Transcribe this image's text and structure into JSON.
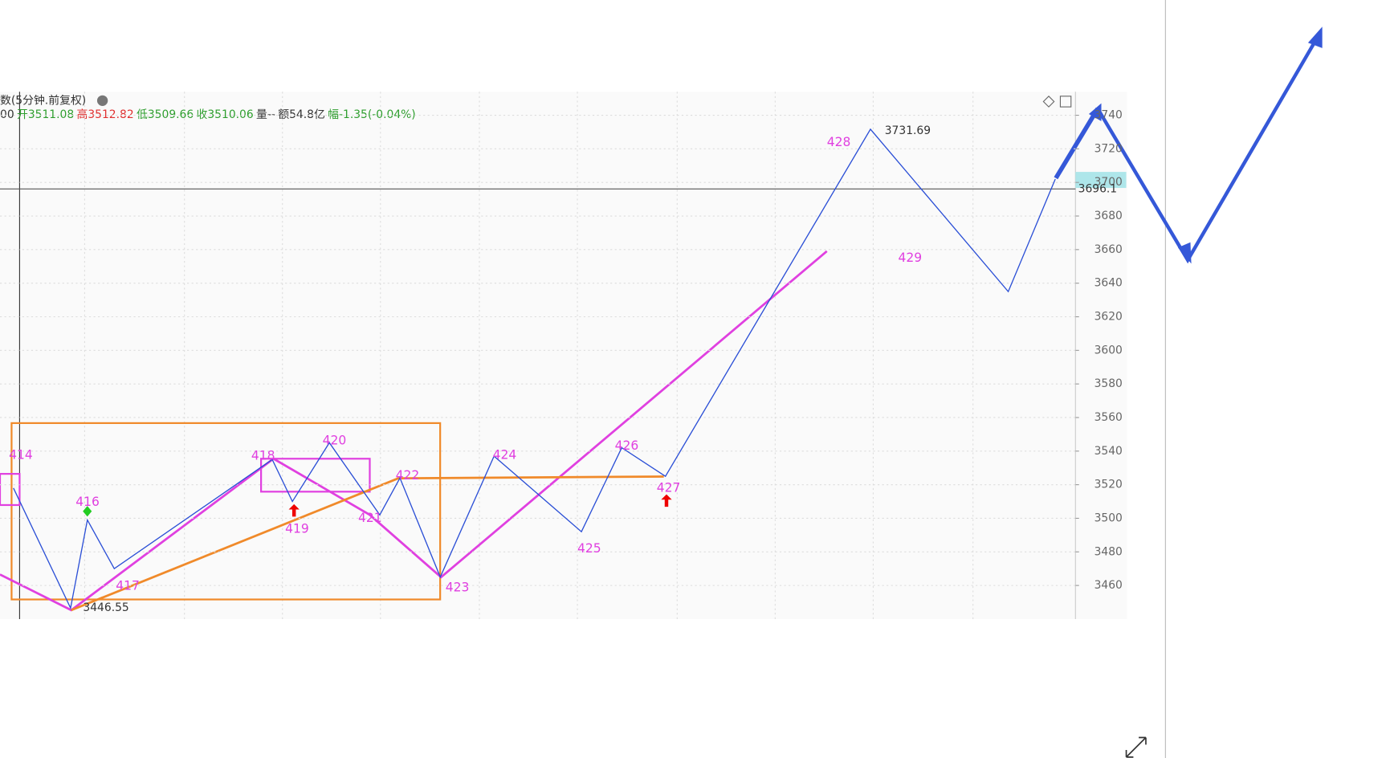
{
  "chart_data": {
    "type": "line",
    "title": "数(5分钟.前复权)",
    "quote_items": [
      {
        "text": "00",
        "color": "#333333"
      },
      {
        "text": "开3511.08",
        "color": "#2e9e2e"
      },
      {
        "text": "高3512.82",
        "color": "#e03030"
      },
      {
        "text": "低3509.66",
        "color": "#2e9e2e"
      },
      {
        "text": "收3510.06",
        "color": "#2e9e2e"
      },
      {
        "text": "量--",
        "color": "#333333"
      },
      {
        "text": "额54.8亿",
        "color": "#333333"
      },
      {
        "text": "幅-1.35(-0.04%)",
        "color": "#2e9e2e"
      }
    ],
    "ylim": [
      3440,
      3754
    ],
    "xlim": [
      0,
      320
    ],
    "yticks": [
      3460,
      3480,
      3500,
      3520,
      3540,
      3560,
      3580,
      3600,
      3620,
      3640,
      3660,
      3680,
      3700,
      3720,
      3740
    ],
    "crosshair_value": 3696.1,
    "high_label": "3731.69",
    "low_label": "3446.55",
    "wave_labels": [
      "414",
      "416",
      "417",
      "418",
      "419",
      "420",
      "421",
      "422",
      "423",
      "424",
      "425",
      "426",
      "427",
      "428",
      "429"
    ],
    "series": [
      {
        "color": "#2b4fd6",
        "x": [
          4,
          21,
          26,
          34,
          81,
          87,
          98,
          113,
          119,
          131,
          147,
          173,
          185,
          198,
          259,
          300,
          314
        ],
        "values": [
          3518,
          3446.55,
          3499,
          3470,
          3535,
          3510,
          3545,
          3502,
          3524,
          3465,
          3537,
          3492,
          3542,
          3525,
          3731.69,
          3635,
          3702
        ]
      }
    ]
  }
}
